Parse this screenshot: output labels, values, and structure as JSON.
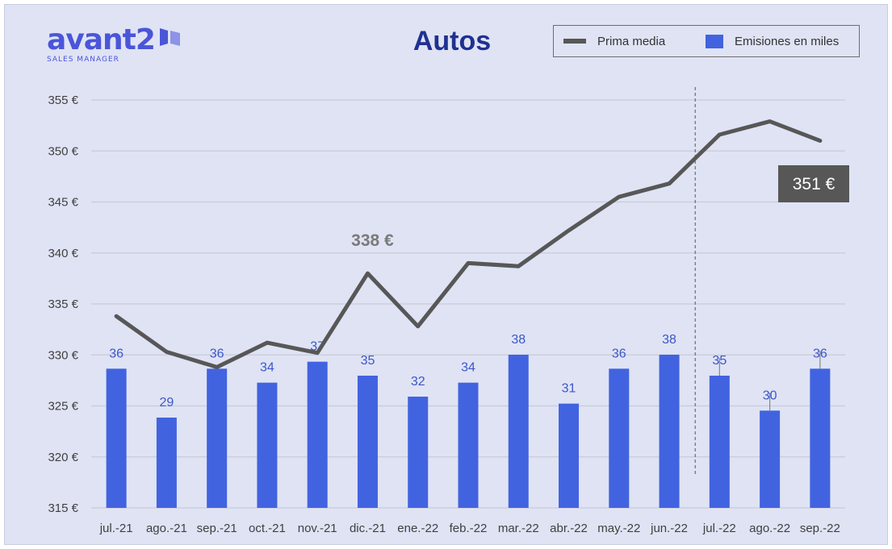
{
  "logo": {
    "word": "avant2",
    "subtitle": "SALES MANAGER"
  },
  "chart_data": {
    "type": "bar",
    "title": "Autos",
    "categories": [
      "jul.-21",
      "ago.-21",
      "sep.-21",
      "oct.-21",
      "nov.-21",
      "dic.-21",
      "ene.-22",
      "feb.-22",
      "mar.-22",
      "abr.-22",
      "may.-22",
      "jun.-22",
      "jul.-22",
      "ago.-22",
      "sep.-22"
    ],
    "series": [
      {
        "name": "Prima media",
        "type": "line",
        "color": "#575757",
        "axis": "left",
        "unit": "€",
        "values": [
          333.8,
          330.3,
          328.8,
          331.2,
          330.2,
          338.0,
          332.8,
          339.0,
          338.7,
          342.2,
          345.5,
          346.8,
          351.6,
          352.9,
          351.0
        ]
      },
      {
        "name": "Emisiones en miles",
        "type": "bar",
        "color": "#4263e0",
        "values": [
          36,
          29,
          36,
          34,
          37,
          35,
          32,
          34,
          38,
          31,
          36,
          38,
          35,
          30,
          36
        ]
      }
    ],
    "y_axis": {
      "min": 315,
      "max": 355,
      "step": 5,
      "unit": "€",
      "tick_labels": [
        "315 €",
        "320 €",
        "325 €",
        "330 €",
        "335 €",
        "340 €",
        "345 €",
        "350 €",
        "355 €"
      ]
    },
    "bar_scale": {
      "unit_low": 26.5,
      "value_low": 29,
      "value_high": 38
    },
    "annotations": [
      {
        "text": "338 €",
        "category": "dic.-21"
      },
      {
        "text": "351 €",
        "category": "sep.-22",
        "boxed": true,
        "box_color": "#575757"
      }
    ],
    "forecast_divider_after": "jun.-22",
    "error_bar_categories": [
      "jul.-22",
      "ago.-22",
      "sep.-22"
    ],
    "grid": true,
    "legend": "top-right"
  }
}
